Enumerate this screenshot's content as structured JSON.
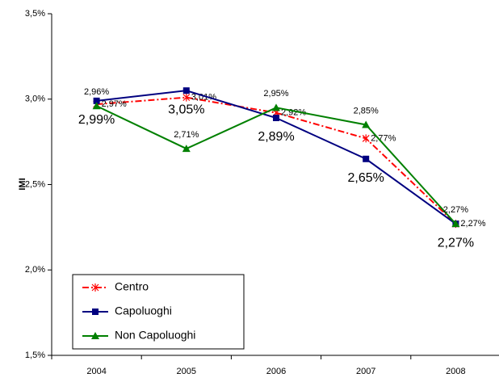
{
  "chart_data": {
    "type": "line",
    "y_label": "IMI",
    "categories": [
      "2004",
      "2005",
      "2006",
      "2007",
      "2008"
    ],
    "series": [
      {
        "name": "Centro",
        "color": "#ff0000",
        "marker": "star",
        "linestyle": "dashdot",
        "values": [
          2.97,
          3.01,
          2.92,
          2.77,
          2.27
        ],
        "value_labels": [
          "2,97%",
          "3,01%",
          "2,92%",
          "2,77%",
          "2,27%"
        ]
      },
      {
        "name": "Capoluoghi",
        "color": "#000080",
        "marker": "square",
        "linestyle": "solid",
        "values": [
          2.99,
          3.05,
          2.89,
          2.65,
          2.27
        ],
        "value_labels": [
          "2,99%",
          "3,05%",
          "2,89%",
          "2,65%",
          "2,27%"
        ]
      },
      {
        "name": "Non Capoluoghi",
        "color": "#008000",
        "marker": "triangle",
        "linestyle": "solid",
        "values": [
          2.96,
          2.71,
          2.95,
          2.85,
          2.27
        ],
        "value_labels": [
          "2,96%",
          "2,71%",
          "2,95%",
          "2,85%",
          "2,27%"
        ]
      }
    ],
    "ylim": [
      1.5,
      3.5
    ],
    "yticks": [
      {
        "value": 1.5,
        "label": "1,5%"
      },
      {
        "value": 2.0,
        "label": "2,0%"
      },
      {
        "value": 2.5,
        "label": "2,5%"
      },
      {
        "value": 3.0,
        "label": "3,0%"
      },
      {
        "value": 3.5,
        "label": "3,5%"
      }
    ],
    "legend": "lower left"
  }
}
